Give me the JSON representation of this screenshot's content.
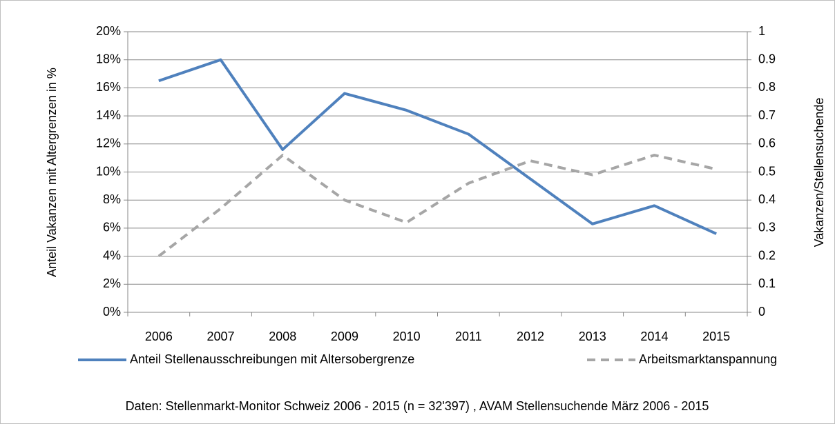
{
  "chart_data": {
    "type": "line",
    "y_label": "Anteil Vakanzen mit Altergrenzen  in  %",
    "y2_label": "Vakanzen/Stellensuchende",
    "note": "Daten: Stellenmarkt-Monitor Schweiz 2006 - 2015 (n = 32'397) , AVAM Stellensuchende März 2006 - 2015",
    "categories": [
      "2006",
      "2007",
      "2008",
      "2009",
      "2010",
      "2011",
      "2012",
      "2013",
      "2014",
      "2015"
    ],
    "series": [
      {
        "name": "Anteil Stellenausschreibungen mit Altersobergrenze",
        "color": "#4f81bd",
        "dashed": false,
        "values": [
          16.5,
          18.0,
          11.6,
          15.6,
          14.4,
          12.7,
          9.5,
          6.3,
          7.6,
          5.6
        ]
      },
      {
        "name": "Arbeitsmarktanspannung",
        "color": "#a6a6a6",
        "dashed": true,
        "axis": "y2",
        "values": [
          0.2,
          0.37,
          0.56,
          0.4,
          0.32,
          0.46,
          0.54,
          0.49,
          0.56,
          0.51
        ]
      }
    ],
    "ylim": [
      0,
      20
    ],
    "yticks": [
      {
        "value": 0,
        "label": "0%"
      },
      {
        "value": 2,
        "label": "2%"
      },
      {
        "value": 4,
        "label": "4%"
      },
      {
        "value": 6,
        "label": "6%"
      },
      {
        "value": 8,
        "label": "8%"
      },
      {
        "value": 10,
        "label": "10%"
      },
      {
        "value": 12,
        "label": "12%"
      },
      {
        "value": 14,
        "label": "14%"
      },
      {
        "value": 16,
        "label": "16%"
      },
      {
        "value": 18,
        "label": "18%"
      },
      {
        "value": 20,
        "label": "20%"
      }
    ],
    "y2lim": [
      0,
      1
    ],
    "y2ticks": [
      0,
      0.1,
      0.2,
      0.3,
      0.4,
      0.5,
      0.6,
      0.7,
      0.8,
      0.9,
      1
    ],
    "grid": true,
    "legend": "bottom"
  }
}
